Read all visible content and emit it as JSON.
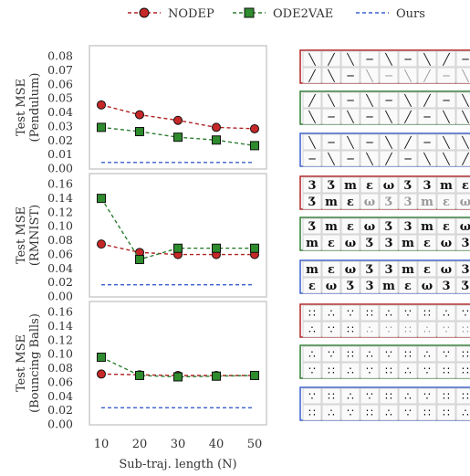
{
  "legend": [
    {
      "label": "NODEP",
      "color": "#b22222",
      "marker": "circle",
      "line": "dashed"
    },
    {
      "label": "ODE2VAE",
      "color": "#2e7d32",
      "marker": "square",
      "line": "dashed"
    },
    {
      "label": "Ours",
      "color": "#3a5fcd",
      "marker": "none",
      "line": "dashed"
    }
  ],
  "colors": {
    "nodep_line": "#b22222",
    "nodep_fill": "#c62828",
    "ode2vae_line": "#2e7d32",
    "ode2vae_fill": "#2e8b2e",
    "ours_line": "#3a5fcd",
    "axis_border": "#cccccc"
  },
  "chart_data": [
    {
      "type": "line",
      "ylabel": "Test MSE\n(Pendulum)",
      "xlabel": "",
      "x": [
        10,
        20,
        30,
        40,
        50
      ],
      "xlim": [
        10,
        50
      ],
      "ylim": [
        0.0,
        0.08
      ],
      "yticks": [
        "0.00",
        "0.01",
        "0.02",
        "0.03",
        "0.04",
        "0.05",
        "0.06",
        "0.07",
        "0.08"
      ],
      "grid": false,
      "series": [
        {
          "name": "NODEP",
          "values": [
            0.045,
            0.038,
            0.034,
            0.029,
            0.028
          ]
        },
        {
          "name": "ODE2VAE",
          "values": [
            0.029,
            0.026,
            0.022,
            0.02,
            0.016
          ]
        },
        {
          "name": "Ours",
          "values": [
            0.004,
            0.004,
            0.004,
            0.004,
            0.004
          ]
        }
      ]
    },
    {
      "type": "line",
      "ylabel": "Test MSE\n(RMNIST)",
      "xlabel": "",
      "x": [
        10,
        20,
        30,
        40,
        50
      ],
      "xlim": [
        10,
        50
      ],
      "ylim": [
        0.0,
        0.16
      ],
      "yticks": [
        "0.00",
        "0.02",
        "0.04",
        "0.06",
        "0.08",
        "0.10",
        "0.12",
        "0.14",
        "0.16"
      ],
      "grid": false,
      "series": [
        {
          "name": "NODEP",
          "values": [
            0.074,
            0.062,
            0.059,
            0.059,
            0.059
          ]
        },
        {
          "name": "ODE2VAE",
          "values": [
            0.139,
            0.052,
            0.068,
            0.068,
            0.068
          ]
        },
        {
          "name": "Ours",
          "values": [
            0.016,
            0.016,
            0.016,
            0.016,
            0.016
          ]
        }
      ]
    },
    {
      "type": "line",
      "ylabel": "Test MSE\n(Bouncing Balls)",
      "xlabel": "Sub-traj. length (N)",
      "x": [
        10,
        20,
        30,
        40,
        50
      ],
      "xticks": [
        "10",
        "20",
        "30",
        "40",
        "50"
      ],
      "xlim": [
        10,
        50
      ],
      "ylim": [
        0.0,
        0.16
      ],
      "yticks": [
        "0.00",
        "0.02",
        "0.04",
        "0.06",
        "0.08",
        "0.10",
        "0.12",
        "0.14",
        "0.16"
      ],
      "grid": false,
      "series": [
        {
          "name": "NODEP",
          "values": [
            0.071,
            0.07,
            0.069,
            0.069,
            0.069
          ]
        },
        {
          "name": "ODE2VAE",
          "values": [
            0.095,
            0.069,
            0.067,
            0.068,
            0.069
          ]
        },
        {
          "name": "Ours",
          "values": [
            0.023,
            0.023,
            0.023,
            0.023,
            0.023
          ]
        }
      ]
    }
  ],
  "thumbnails": {
    "border_colors": [
      "#b22222",
      "#2e7d32",
      "#3a5fcd"
    ],
    "datasets": [
      {
        "name": "pendulum",
        "glyphs": [
          "╲",
          "╱",
          "╲",
          "─",
          "╲",
          "─",
          "╲",
          "╱",
          "─",
          "╲"
        ]
      },
      {
        "name": "rmnist",
        "glyphs": [
          "3",
          "Ʒ",
          "m",
          "ε",
          "ω",
          "Ʒ",
          "3",
          "m",
          "ε",
          "ω"
        ]
      },
      {
        "name": "bouncing-balls",
        "glyphs": [
          "∷",
          "∴",
          "∵",
          "∷",
          "∴",
          "∵",
          "∷",
          "∴",
          "∵",
          "∷"
        ]
      }
    ]
  }
}
